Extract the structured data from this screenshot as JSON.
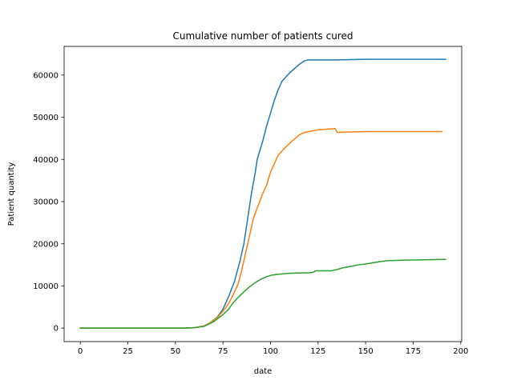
{
  "chart_data": {
    "type": "line",
    "title": "Cumulative number of patients cured",
    "xlabel": "date",
    "ylabel": "Patient quantity",
    "xlim": [
      -8.5,
      200.5
    ],
    "ylim": [
      -3200,
      66800
    ],
    "xticks": [
      0,
      25,
      50,
      75,
      100,
      125,
      150,
      175,
      200
    ],
    "xtick_labels": [
      "0",
      "25",
      "50",
      "75",
      "100",
      "125",
      "150",
      "175",
      "200"
    ],
    "yticks": [
      0,
      10000,
      20000,
      30000,
      40000,
      50000,
      60000
    ],
    "ytick_labels": [
      "0",
      "10000",
      "20000",
      "30000",
      "40000",
      "50000",
      "60000"
    ],
    "grid": false,
    "legend": "none",
    "series": [
      {
        "color": "#1f77b4",
        "points": [
          [
            0,
            0
          ],
          [
            55,
            0
          ],
          [
            60,
            100
          ],
          [
            65,
            500
          ],
          [
            68,
            1200
          ],
          [
            72,
            2600
          ],
          [
            75,
            4500
          ],
          [
            78,
            7500
          ],
          [
            81,
            11000
          ],
          [
            84,
            16000
          ],
          [
            86,
            20000
          ],
          [
            88,
            26000
          ],
          [
            90,
            32000
          ],
          [
            92,
            37000
          ],
          [
            93,
            40000
          ],
          [
            96,
            44500
          ],
          [
            98,
            48000
          ],
          [
            100,
            51000
          ],
          [
            102,
            54000
          ],
          [
            104,
            56500
          ],
          [
            106,
            58500
          ],
          [
            108,
            59500
          ],
          [
            110,
            60500
          ],
          [
            112,
            61300
          ],
          [
            115,
            62500
          ],
          [
            118,
            63400
          ],
          [
            120,
            63600
          ],
          [
            125,
            63600
          ],
          [
            135,
            63600
          ],
          [
            140,
            63650
          ],
          [
            145,
            63700
          ],
          [
            150,
            63750
          ],
          [
            160,
            63750
          ],
          [
            170,
            63750
          ],
          [
            180,
            63750
          ],
          [
            192,
            63750
          ]
        ]
      },
      {
        "color": "#ff7f0e",
        "points": [
          [
            0,
            0
          ],
          [
            55,
            0
          ],
          [
            60,
            100
          ],
          [
            65,
            500
          ],
          [
            68,
            1200
          ],
          [
            72,
            2500
          ],
          [
            75,
            4000
          ],
          [
            78,
            5800
          ],
          [
            81,
            8500
          ],
          [
            83,
            10500
          ],
          [
            85,
            14000
          ],
          [
            87,
            18000
          ],
          [
            89,
            22000
          ],
          [
            91,
            26000
          ],
          [
            93,
            28500
          ],
          [
            96,
            32000
          ],
          [
            98,
            34000
          ],
          [
            100,
            37000
          ],
          [
            102,
            39000
          ],
          [
            104,
            41000
          ],
          [
            107,
            42500
          ],
          [
            110,
            43800
          ],
          [
            113,
            45000
          ],
          [
            115,
            45800
          ],
          [
            118,
            46400
          ],
          [
            121,
            46700
          ],
          [
            125,
            47000
          ],
          [
            130,
            47200
          ],
          [
            134,
            47300
          ],
          [
            135,
            46400
          ],
          [
            140,
            46500
          ],
          [
            150,
            46600
          ],
          [
            160,
            46600
          ],
          [
            170,
            46600
          ],
          [
            180,
            46600
          ],
          [
            190,
            46600
          ]
        ]
      },
      {
        "color": "#2ca02c",
        "points": [
          [
            0,
            0
          ],
          [
            55,
            0
          ],
          [
            60,
            100
          ],
          [
            65,
            400
          ],
          [
            70,
            1500
          ],
          [
            75,
            3200
          ],
          [
            78,
            4500
          ],
          [
            80,
            5800
          ],
          [
            83,
            7300
          ],
          [
            86,
            8600
          ],
          [
            89,
            9800
          ],
          [
            92,
            10800
          ],
          [
            95,
            11600
          ],
          [
            98,
            12200
          ],
          [
            101,
            12600
          ],
          [
            105,
            12800
          ],
          [
            110,
            13000
          ],
          [
            115,
            13100
          ],
          [
            120,
            13100
          ],
          [
            122,
            13200
          ],
          [
            124,
            13600
          ],
          [
            128,
            13600
          ],
          [
            132,
            13600
          ],
          [
            135,
            13900
          ],
          [
            138,
            14300
          ],
          [
            143,
            14700
          ],
          [
            146,
            15000
          ],
          [
            150,
            15200
          ],
          [
            154,
            15500
          ],
          [
            158,
            15800
          ],
          [
            162,
            16000
          ],
          [
            170,
            16100
          ],
          [
            180,
            16200
          ],
          [
            192,
            16300
          ]
        ]
      }
    ]
  }
}
